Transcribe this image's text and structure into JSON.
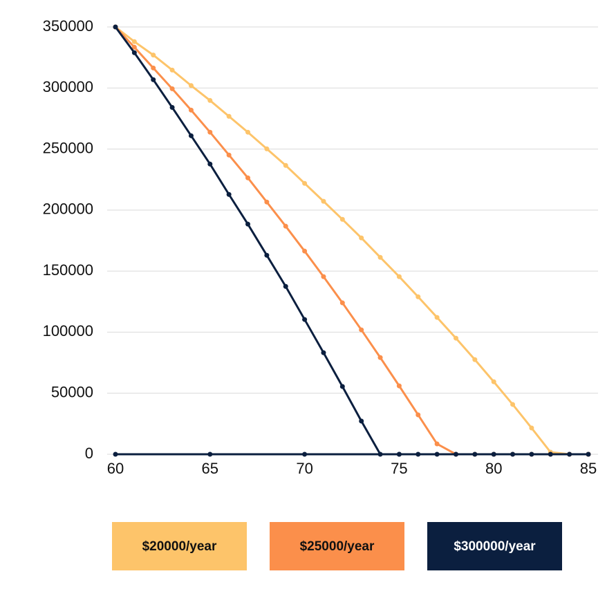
{
  "chart_data": {
    "type": "line",
    "x": [
      60,
      61,
      62,
      63,
      64,
      65,
      66,
      67,
      68,
      69,
      70,
      71,
      72,
      73,
      74,
      75,
      76,
      77,
      78,
      79,
      80,
      81,
      82,
      83,
      84,
      85
    ],
    "series": [
      {
        "name": "$20000/year",
        "color": "#fdc46a",
        "values": [
          350000,
          338000,
          327000,
          314700,
          302000,
          289800,
          276800,
          263800,
          250200,
          236600,
          221900,
          207200,
          192400,
          177200,
          161300,
          145500,
          129000,
          112100,
          95100,
          77500,
          59400,
          40800,
          21500,
          1700,
          0,
          0
        ]
      },
      {
        "name": "$25000/year",
        "color": "#fb8f4b",
        "values": [
          350000,
          333400,
          316400,
          299400,
          281900,
          263800,
          245100,
          226400,
          206600,
          186800,
          166400,
          145500,
          124000,
          101900,
          79200,
          56000,
          32300,
          8500,
          0,
          0,
          0,
          0,
          0,
          0,
          0,
          0
        ]
      },
      {
        "name": "$300000/year",
        "color": "#0b1f3f",
        "values": [
          350000,
          328900,
          306800,
          284100,
          260900,
          237700,
          212800,
          188500,
          163000,
          137500,
          110400,
          83200,
          55500,
          27200,
          0,
          0,
          0,
          0,
          0,
          0,
          0,
          0,
          0,
          0,
          0,
          0
        ]
      }
    ],
    "xlim": [
      60,
      85
    ],
    "xticks": [
      60,
      65,
      70,
      75,
      80,
      85
    ],
    "ylim": [
      0,
      350000
    ],
    "yticks": [
      0,
      50000,
      100000,
      150000,
      200000,
      250000,
      300000,
      350000
    ],
    "grid": true
  }
}
